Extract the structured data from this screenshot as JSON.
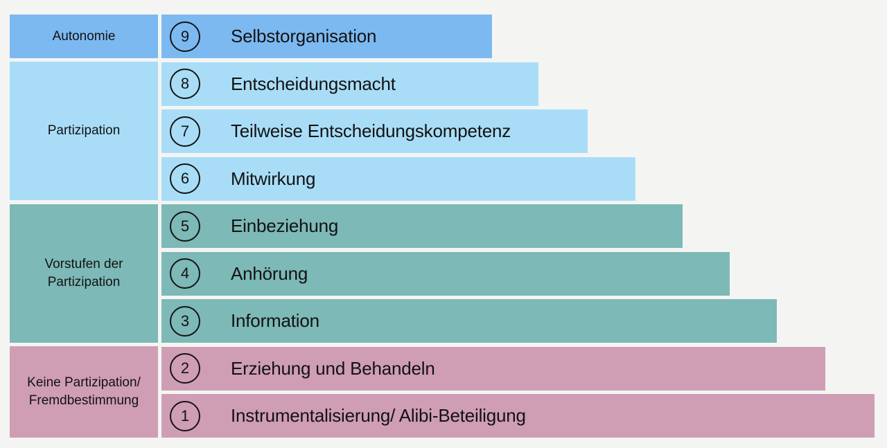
{
  "diagram": {
    "kind": "stufen-der-partizipation-ladder",
    "language": "de"
  },
  "colors": {
    "autonomie": "#7cb9f1",
    "partizipation": "#a9ddf7",
    "vorstufen": "#7db9b6",
    "keine": "#cf9eb4",
    "background": "#f4f5f3",
    "ink": "#131313"
  },
  "groups": [
    {
      "id": "autonomie",
      "lines": [
        "Autonomie"
      ]
    },
    {
      "id": "partizipation",
      "lines": [
        "Partizipation"
      ]
    },
    {
      "id": "vorstufen",
      "lines": [
        "Vorstufen der",
        "Partizipation"
      ]
    },
    {
      "id": "keine-partizipation",
      "lines": [
        "Keine Partizipation/",
        "Fremdbestimmung"
      ]
    }
  ],
  "levels": [
    {
      "number": "9",
      "label": "Selbstorganisation"
    },
    {
      "number": "8",
      "label": "Entscheidungsmacht"
    },
    {
      "number": "7",
      "label": "Teilweise Entscheidungskompetenz"
    },
    {
      "number": "6",
      "label": "Mitwirkung"
    },
    {
      "number": "5",
      "label": "Einbeziehung"
    },
    {
      "number": "4",
      "label": "Anhörung"
    },
    {
      "number": "3",
      "label": "Information"
    },
    {
      "number": "2",
      "label": "Erziehung und Behandeln"
    },
    {
      "number": "1",
      "label": "Instrumentalisierung/ Alibi-Beteiligung"
    }
  ]
}
